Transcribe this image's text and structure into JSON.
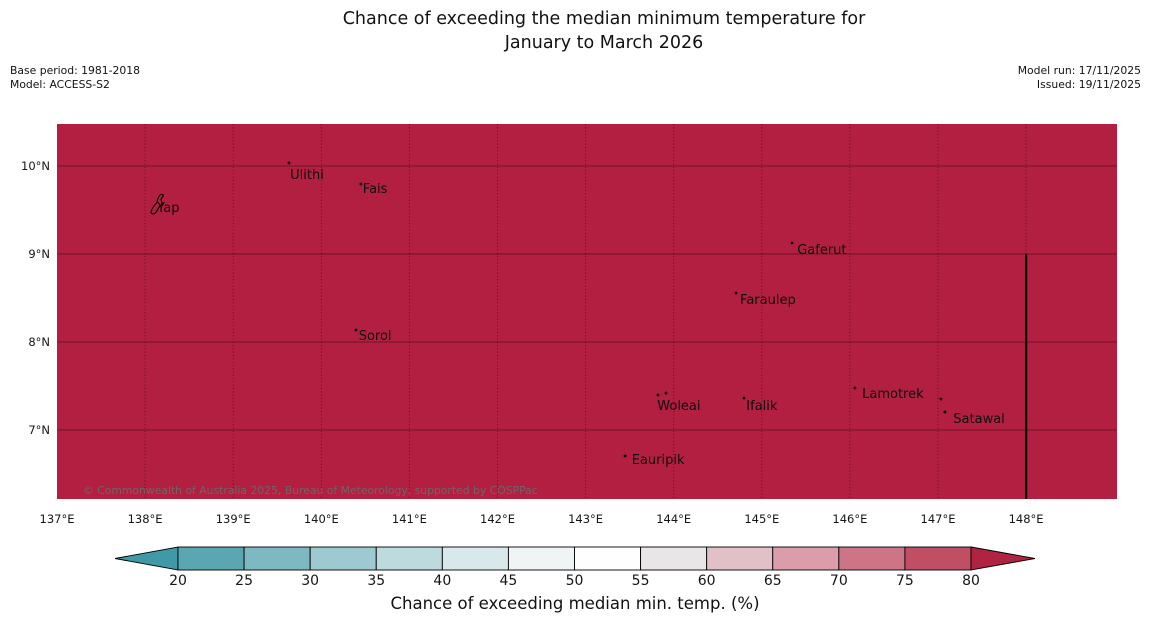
{
  "title": {
    "line1": "Chance of exceeding the median minimum temperature for",
    "line2": "January to March 2026"
  },
  "meta": {
    "base_period": "Base period: 1981-2018",
    "model": "Model: ACCESS-S2",
    "model_run": "Model run: 17/11/2025",
    "issued": "Issued: 19/11/2025"
  },
  "map": {
    "fill_color": "#b21f41",
    "gridline_color": "rgba(0,0,0,0.5)",
    "boundary_line": {
      "lon": 148,
      "lat_from": 9,
      "to_bottom": true,
      "color": "#000000"
    },
    "region_value_bin": ">80",
    "copyright": "© Commonwealth of Australia 2025, Bureau of Meteorology, supported by COSPPac",
    "x_axis": {
      "ticks": [
        {
          "label": "137°E",
          "lon": 137
        },
        {
          "label": "138°E",
          "lon": 138
        },
        {
          "label": "139°E",
          "lon": 139
        },
        {
          "label": "140°E",
          "lon": 140
        },
        {
          "label": "141°E",
          "lon": 141
        },
        {
          "label": "142°E",
          "lon": 142
        },
        {
          "label": "143°E",
          "lon": 143
        },
        {
          "label": "144°E",
          "lon": 144
        },
        {
          "label": "145°E",
          "lon": 145
        },
        {
          "label": "146°E",
          "lon": 146
        },
        {
          "label": "147°E",
          "lon": 147
        },
        {
          "label": "148°E",
          "lon": 148
        }
      ]
    },
    "y_axis": {
      "ticks": [
        {
          "label": "10°N",
          "lat": 10
        },
        {
          "label": "9°N",
          "lat": 9
        },
        {
          "label": "8°N",
          "lat": 8
        },
        {
          "label": "7°N",
          "lat": 7
        }
      ]
    },
    "places": [
      {
        "name": "Yap",
        "label_lon": 138.264,
        "label_lat": 9.511,
        "shape": "island",
        "markers": []
      },
      {
        "name": "Ulithi",
        "label_lon": 139.838,
        "label_lat": 9.886,
        "markers": [
          [
            139.633,
            10.034
          ]
        ]
      },
      {
        "name": "Fais",
        "label_lon": 140.611,
        "label_lat": 9.727,
        "markers": [
          [
            140.45,
            9.795
          ]
        ]
      },
      {
        "name": "Gaferut",
        "label_lon": 145.682,
        "label_lat": 9.034,
        "markers": [
          [
            145.343,
            9.125
          ]
        ]
      },
      {
        "name": "Faraulep",
        "label_lon": 145.069,
        "label_lat": 8.466,
        "markers": [
          [
            144.707,
            8.557
          ]
        ]
      },
      {
        "name": "Sorol",
        "label_lon": 140.611,
        "label_lat": 8.057,
        "markers": [
          [
            140.394,
            8.136
          ]
        ]
      },
      {
        "name": "Woleai",
        "label_lon": 144.059,
        "label_lat": 7.261,
        "markers": [
          [
            143.822,
            7.398
          ],
          [
            143.913,
            7.42
          ]
        ]
      },
      {
        "name": "Ifalik",
        "label_lon": 145.001,
        "label_lat": 7.261,
        "markers": [
          [
            144.798,
            7.364
          ]
        ]
      },
      {
        "name": "Lamotrek",
        "label_lon": 146.488,
        "label_lat": 7.398,
        "markers": [
          [
            146.057,
            7.477
          ],
          [
            147.033,
            7.352
          ]
        ]
      },
      {
        "name": "Satawal",
        "label_lon": 147.466,
        "label_lat": 7.114,
        "markers": [
          [
            147.079,
            7.205
          ]
        ]
      },
      {
        "name": "Eauripik",
        "label_lon": 143.823,
        "label_lat": 6.648,
        "markers": [
          [
            143.448,
            6.705
          ]
        ]
      }
    ]
  },
  "colorbar": {
    "label": "Chance of exceeding median min. temp. (%)",
    "ticks": [
      20,
      25,
      30,
      35,
      40,
      45,
      50,
      55,
      60,
      65,
      70,
      75,
      80
    ],
    "arrow_left_color": "#3f99a6",
    "arrow_right_color": "#b02441",
    "segments": [
      {
        "v0": 20,
        "v1": 25,
        "color": "#5aa7b2"
      },
      {
        "v0": 25,
        "v1": 30,
        "color": "#7db9c1"
      },
      {
        "v0": 30,
        "v1": 35,
        "color": "#9dcad0"
      },
      {
        "v0": 35,
        "v1": 40,
        "color": "#bddadd"
      },
      {
        "v0": 40,
        "v1": 45,
        "color": "#d9e8ea"
      },
      {
        "v0": 45,
        "v1": 50,
        "color": "#eff4f5"
      },
      {
        "v0": 50,
        "v1": 55,
        "color": "#fefefe"
      },
      {
        "v0": 55,
        "v1": 60,
        "color": "#e8e6e7"
      },
      {
        "v0": 60,
        "v1": 65,
        "color": "#e2c0c7"
      },
      {
        "v0": 65,
        "v1": 70,
        "color": "#db9daa"
      },
      {
        "v0": 70,
        "v1": 75,
        "color": "#cd7487"
      },
      {
        "v0": 75,
        "v1": 80,
        "color": "#c04e64"
      }
    ]
  }
}
